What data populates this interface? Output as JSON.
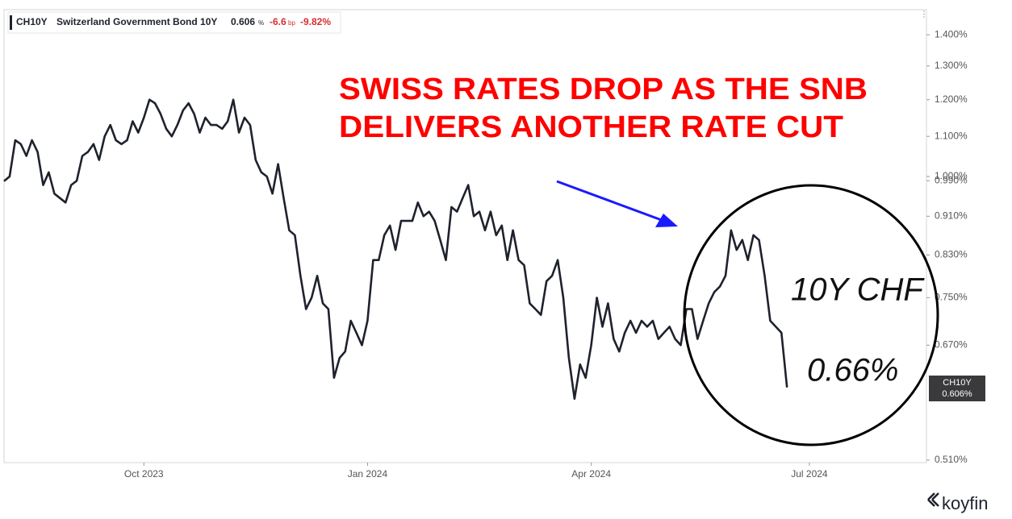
{
  "header": {
    "ticker": "CH10Y",
    "name": "Switzerland Government Bond 10Y",
    "price": "0.606",
    "price_unit": "%",
    "change": "-6.6",
    "change_unit": "bp",
    "change_pct": "-9.82%"
  },
  "brand": "koyfin",
  "chart_data": {
    "type": "line",
    "title_lines": [
      "SWISS RATES DROP AS THE SNB",
      "DELIVERS ANOTHER RATE CUT"
    ],
    "annotations": [
      "10Y CHF",
      "0.66%"
    ],
    "series_name": "CH10Y",
    "last_value_label": "0.606%",
    "color": "#1e222d",
    "log": true,
    "grid": false,
    "ylim": [
      0.507,
      1.486
    ],
    "yticks": [
      {
        "value": 0.51,
        "label": "0.510%"
      },
      {
        "value": 0.67,
        "label": "0.670%"
      },
      {
        "value": 0.75,
        "label": "0.750%"
      },
      {
        "value": 0.83,
        "label": "0.830%"
      },
      {
        "value": 0.91,
        "label": "0.910%"
      },
      {
        "value": 0.99,
        "label": "0.990%"
      },
      {
        "value": 1.0,
        "label": "1.000%"
      },
      {
        "value": 1.1,
        "label": "1.100%"
      },
      {
        "value": 1.2,
        "label": "1.200%"
      },
      {
        "value": 1.3,
        "label": "1.300%"
      },
      {
        "value": 1.4,
        "label": "1.400%"
      }
    ],
    "categories": [
      null,
      null,
      null,
      null,
      null,
      null,
      null,
      null,
      null,
      null,
      null,
      null,
      null,
      null,
      null,
      null,
      null,
      null,
      null,
      null,
      null,
      null,
      null,
      null,
      null,
      "Oct 2023",
      null,
      null,
      null,
      null,
      null,
      null,
      null,
      null,
      null,
      null,
      null,
      null,
      null,
      null,
      null,
      null,
      null,
      null,
      null,
      null,
      null,
      null,
      null,
      null,
      null,
      null,
      null,
      null,
      null,
      null,
      null,
      null,
      null,
      null,
      null,
      null,
      null,
      null,
      null,
      "Jan 2024",
      null,
      null,
      null,
      null,
      null,
      null,
      null,
      null,
      null,
      null,
      null,
      null,
      null,
      null,
      null,
      null,
      null,
      null,
      null,
      null,
      null,
      null,
      null,
      null,
      null,
      null,
      null,
      null,
      null,
      null,
      null,
      null,
      null,
      null,
      null,
      null,
      null,
      null,
      null,
      "Apr 2024",
      null,
      null,
      null,
      null,
      null,
      null,
      null,
      null,
      null,
      null,
      null,
      null,
      null,
      null,
      null,
      null,
      null,
      null,
      null,
      null,
      null,
      null,
      null,
      null,
      null,
      null,
      null,
      null,
      null,
      null,
      null,
      null,
      null,
      null,
      null,
      null,
      null,
      null,
      "Jul 2024"
    ],
    "values": [
      0.989,
      1.0,
      1.09,
      1.08,
      1.05,
      1.09,
      1.06,
      0.98,
      1.01,
      0.96,
      0.95,
      0.94,
      0.98,
      0.99,
      1.05,
      1.06,
      1.08,
      1.04,
      1.1,
      1.13,
      1.09,
      1.08,
      1.09,
      1.14,
      1.11,
      1.15,
      1.2,
      1.19,
      1.16,
      1.12,
      1.1,
      1.13,
      1.17,
      1.19,
      1.16,
      1.11,
      1.15,
      1.13,
      1.13,
      1.12,
      1.14,
      1.2,
      1.11,
      1.15,
      1.13,
      1.04,
      1.01,
      1.0,
      0.96,
      1.03,
      0.95,
      0.88,
      0.87,
      0.79,
      0.73,
      0.75,
      0.79,
      0.74,
      0.73,
      0.62,
      0.65,
      0.66,
      0.71,
      0.69,
      0.67,
      0.71,
      0.82,
      0.82,
      0.87,
      0.89,
      0.84,
      0.9,
      0.9,
      0.9,
      0.94,
      0.91,
      0.92,
      0.9,
      0.86,
      0.82,
      0.93,
      0.92,
      0.95,
      0.98,
      0.91,
      0.92,
      0.88,
      0.92,
      0.87,
      0.89,
      0.82,
      0.88,
      0.82,
      0.81,
      0.74,
      0.73,
      0.72,
      0.78,
      0.79,
      0.82,
      0.75,
      0.65,
      0.59,
      0.64,
      0.62,
      0.67,
      0.75,
      0.7,
      0.74,
      0.68,
      0.66,
      0.69,
      0.71,
      0.69,
      0.71,
      0.7,
      0.71,
      0.68,
      0.69,
      0.7,
      0.68,
      0.67,
      0.73,
      0.73,
      0.68,
      0.71,
      0.74,
      0.76,
      0.77,
      0.79,
      0.88,
      0.84,
      0.86,
      0.82,
      0.87,
      0.86,
      0.79,
      0.71,
      0.7,
      0.69,
      0.606,
      null,
      null,
      null,
      null
    ]
  }
}
